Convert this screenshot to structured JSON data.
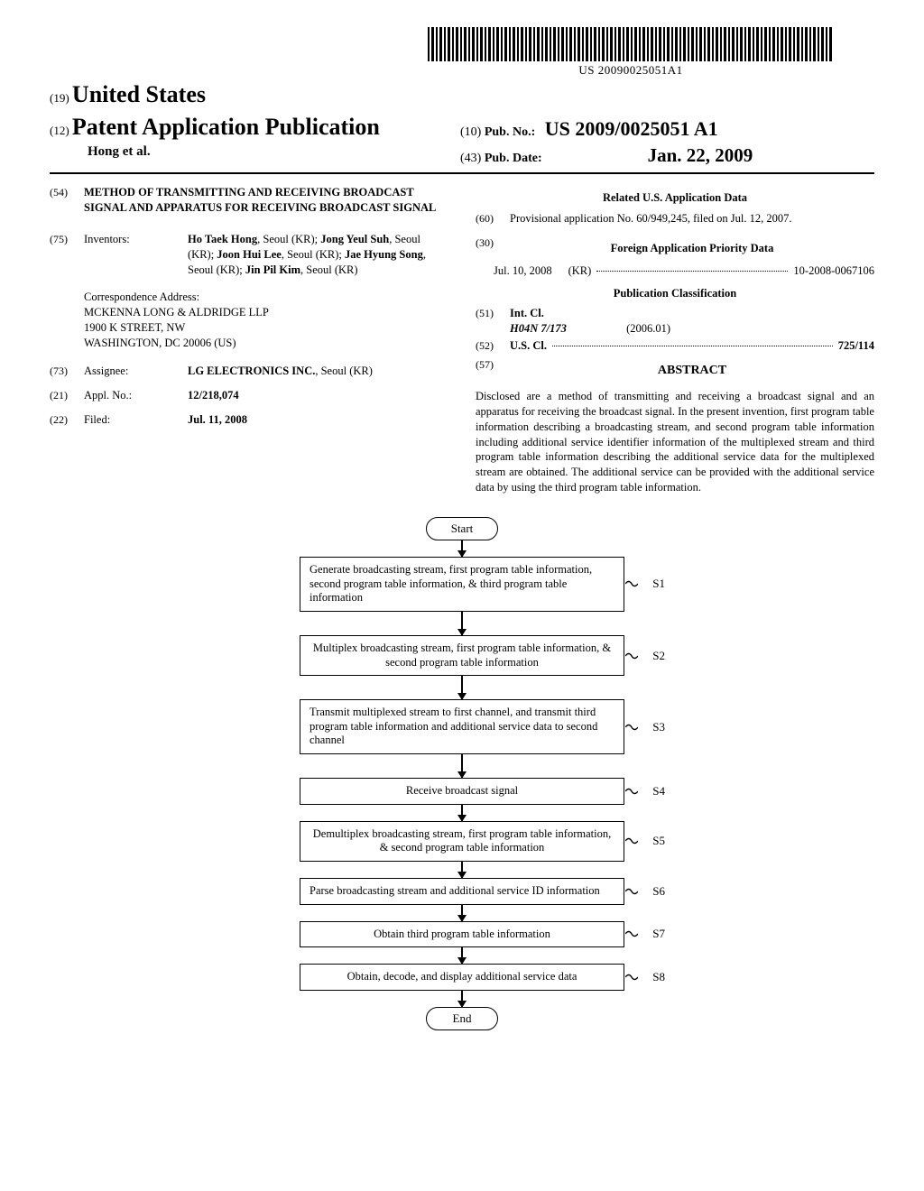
{
  "barcode_text": "US 20090025051A1",
  "header": {
    "code19": "(19)",
    "country": "United States",
    "code12": "(12)",
    "doc_type": "Patent Application Publication",
    "authors_short": "Hong et al.",
    "code10": "(10)",
    "pubno_label": "Pub. No.:",
    "pubno": "US 2009/0025051 A1",
    "code43": "(43)",
    "pubdate_label": "Pub. Date:",
    "pubdate": "Jan. 22, 2009"
  },
  "left": {
    "code54": "(54)",
    "title": "METHOD OF TRANSMITTING AND RECEIVING BROADCAST SIGNAL AND APPARATUS FOR RECEIVING BROADCAST SIGNAL",
    "code75": "(75)",
    "inventors_label": "Inventors:",
    "inventors_html": "Ho Taek Hong|, Seoul (KR); |Jong Yeul Suh|, Seoul (KR); |Joon Hui Lee|, Seoul (KR); |Jae Hyung Song|, Seoul (KR); |Jin Pil Kim|, Seoul (KR)",
    "corr_label": "Correspondence Address:",
    "corr1": "MCKENNA LONG & ALDRIDGE LLP",
    "corr2": "1900 K STREET, NW",
    "corr3": "WASHINGTON, DC 20006 (US)",
    "code73": "(73)",
    "assignee_label": "Assignee:",
    "assignee": "LG ELECTRONICS INC.",
    "assignee_loc": ", Seoul (KR)",
    "code21": "(21)",
    "applno_label": "Appl. No.:",
    "applno": "12/218,074",
    "code22": "(22)",
    "filed_label": "Filed:",
    "filed": "Jul. 11, 2008"
  },
  "right": {
    "related_head": "Related U.S. Application Data",
    "code60": "(60)",
    "provisional": "Provisional application No. 60/949,245, filed on Jul. 12, 2007.",
    "code30": "(30)",
    "foreign_head": "Foreign Application Priority Data",
    "foreign_date": "Jul. 10, 2008",
    "foreign_country": "(KR)",
    "foreign_num": "10-2008-0067106",
    "pubclass_head": "Publication Classification",
    "code51": "(51)",
    "intcl_label": "Int. Cl.",
    "intcl_code": "H04N 7/173",
    "intcl_date": "(2006.01)",
    "code52": "(52)",
    "uscl_label": "U.S. Cl.",
    "uscl_val": "725/114",
    "code57": "(57)",
    "abstract_head": "ABSTRACT",
    "abstract": "Disclosed are a method of transmitting and receiving a broadcast signal and an apparatus for receiving the broadcast signal. In the present invention, first program table information describing a broadcasting stream, and second program table information including additional service identifier information of the multiplexed stream and third program table information describing the additional service data for the multiplexed stream are obtained. The additional service can be provided with the additional service data by using the third program table information."
  },
  "flowchart": {
    "start": "Start",
    "end": "End",
    "steps": [
      {
        "label": "S1",
        "text": "Generate broadcasting stream, first program table information, second program table information, & third program table information"
      },
      {
        "label": "S2",
        "text": "Multiplex broadcasting stream,\nfirst program table information,\n& second program table information",
        "center": true
      },
      {
        "label": "S3",
        "text": "Transmit multiplexed stream to first channel, and transmit third program table information and additional service data to second channel"
      },
      {
        "label": "S4",
        "text": "Receive broadcast signal",
        "center": true
      },
      {
        "label": "S5",
        "text": "Demultiplex broadcasting stream,\nfirst program table information,\n& second program table information",
        "center": true
      },
      {
        "label": "S6",
        "text": "Parse broadcasting stream and additional service ID information"
      },
      {
        "label": "S7",
        "text": "Obtain third program table information",
        "center": true
      },
      {
        "label": "S8",
        "text": "Obtain, decode, and display additional service data",
        "center": true
      }
    ]
  }
}
